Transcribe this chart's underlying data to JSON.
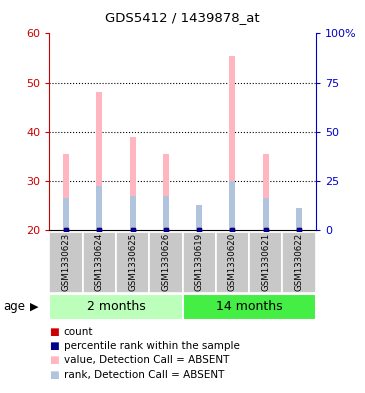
{
  "title": "GDS5412 / 1439878_at",
  "samples": [
    "GSM1330623",
    "GSM1330624",
    "GSM1330625",
    "GSM1330626",
    "GSM1330619",
    "GSM1330620",
    "GSM1330621",
    "GSM1330622"
  ],
  "groups": [
    {
      "label": "2 months",
      "indices": [
        0,
        1,
        2,
        3
      ],
      "color_light": "#BBFFBB",
      "color_dark": "#44DD44"
    },
    {
      "label": "14 months",
      "indices": [
        4,
        5,
        6,
        7
      ],
      "color_light": "#44DD44",
      "color_dark": "#44DD44"
    }
  ],
  "value_absent": [
    35.5,
    48.0,
    39.0,
    35.5,
    24.5,
    55.5,
    35.5,
    24.5
  ],
  "rank_absent": [
    26.5,
    29.0,
    27.0,
    27.0,
    25.0,
    30.0,
    26.5,
    24.5
  ],
  "ylim_left": [
    20,
    60
  ],
  "ylim_right": [
    0,
    100
  ],
  "left_ticks": [
    20,
    30,
    40,
    50,
    60
  ],
  "right_ticks": [
    0,
    25,
    50,
    75,
    100
  ],
  "right_tick_labels": [
    "0",
    "25",
    "50",
    "75",
    "100%"
  ],
  "bar_bottom": 20,
  "color_value_absent": "#FFB6C1",
  "color_rank_absent": "#B0C4DE",
  "color_count": "#CC0000",
  "color_percentile": "#00008B",
  "bg_sample": "#C8C8C8",
  "legend_items": [
    {
      "color": "#CC0000",
      "label": "count"
    },
    {
      "color": "#00008B",
      "label": "percentile rank within the sample"
    },
    {
      "color": "#FFB6C1",
      "label": "value, Detection Call = ABSENT"
    },
    {
      "color": "#B0C4DE",
      "label": "rank, Detection Call = ABSENT"
    }
  ],
  "age_label": "age",
  "left_axis_color": "#CC0000",
  "right_axis_color": "#0000CC",
  "group1_color": "#BBFFBB",
  "group2_color": "#44EE44"
}
